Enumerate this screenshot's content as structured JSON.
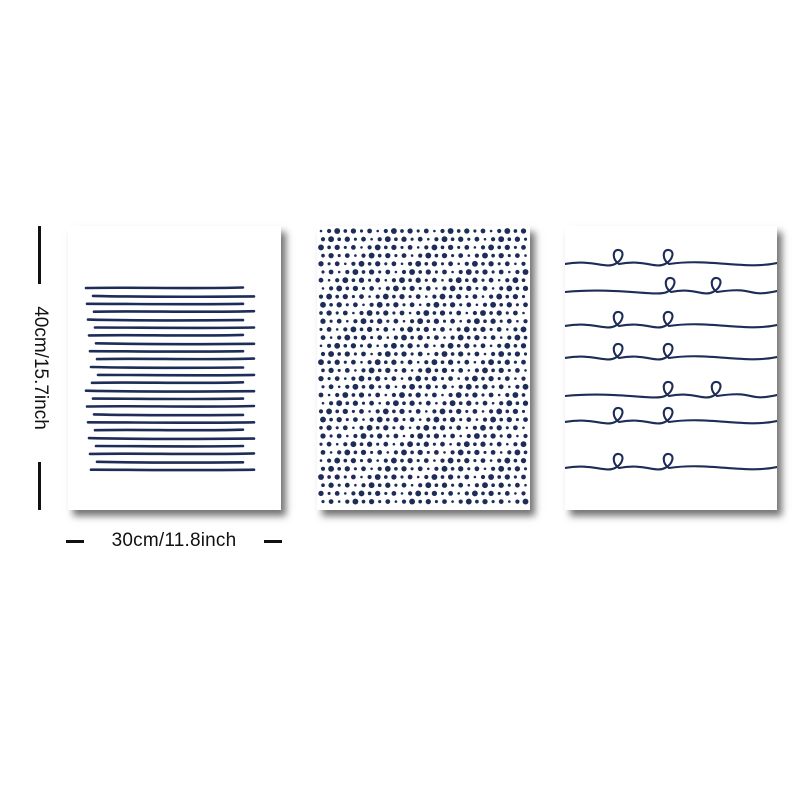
{
  "product": {
    "ink_color": "#1e2d57",
    "panels": [
      {
        "pattern": "horizontal-lines"
      },
      {
        "pattern": "dots"
      },
      {
        "pattern": "wavy-loop-lines"
      }
    ]
  },
  "dimensions": {
    "width_label": "30cm/11.8inch",
    "height_label": "40cm/15.7inch"
  }
}
